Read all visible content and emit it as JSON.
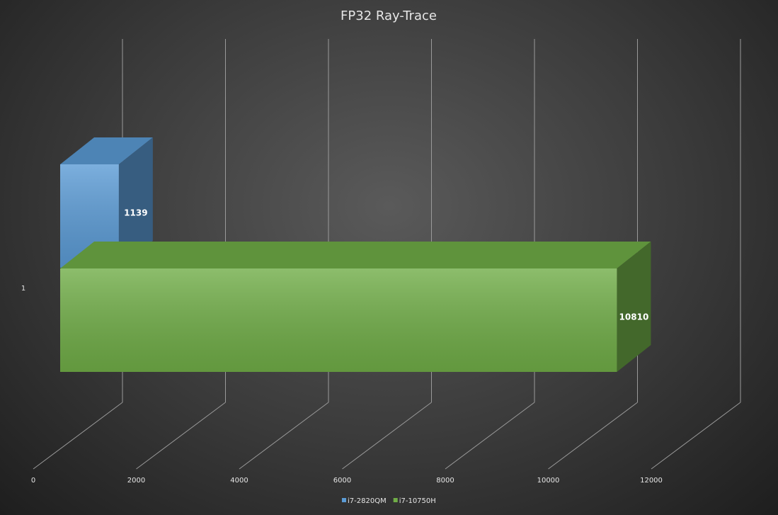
{
  "chart_data": {
    "type": "bar",
    "orientation": "horizontal",
    "title": "FP32  Ray-Trace",
    "categories": [
      "1"
    ],
    "series": [
      {
        "name": "i7-2820QM",
        "color": "#5b9bd5",
        "values": [
          1139
        ]
      },
      {
        "name": "i7-10750H",
        "color": "#70ad47",
        "values": [
          10810
        ]
      }
    ],
    "xlim": [
      0,
      12000
    ],
    "xticks": [
      0,
      2000,
      4000,
      6000,
      8000,
      10000,
      12000
    ],
    "grid": true,
    "legend": "bottom"
  }
}
